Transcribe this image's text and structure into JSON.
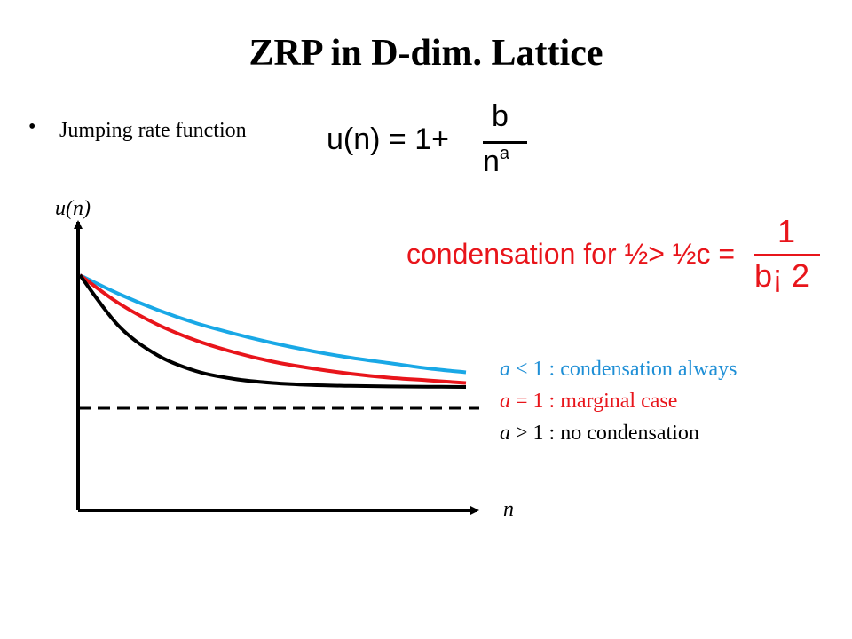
{
  "slide": {
    "title": "ZRP in D-dim. Lattice",
    "bullet": "Jumping rate function"
  },
  "formula": {
    "lhs": "u(n) = 1+",
    "numerator": "b",
    "denominator": "n",
    "exponent": "a"
  },
  "condition": {
    "text": "condensation for ½> ½c =",
    "numerator": "1",
    "denominator": "b¡ 2",
    "color": "#e8151b"
  },
  "legend": [
    {
      "var": "a",
      "text": " < 1 : condensation always",
      "color": "#1f8fd6"
    },
    {
      "var": "a",
      "text": " = 1 : marginal case",
      "color": "#e8151b"
    },
    {
      "var": "a",
      "text": " > 1 : no condensation",
      "color": "#000000"
    }
  ],
  "chart_data": {
    "type": "line",
    "title": "",
    "xlabel": "n",
    "ylabel": "u(n)",
    "grid": false,
    "series": [
      {
        "color": "#19a8e6",
        "x": [
          0,
          1,
          2,
          3,
          4,
          5,
          6,
          7,
          8,
          9,
          10
        ],
        "y": [
          1.0,
          0.86,
          0.74,
          0.64,
          0.56,
          0.49,
          0.43,
          0.38,
          0.34,
          0.3,
          0.27
        ]
      },
      {
        "color": "#e8151b",
        "x": [
          0,
          1,
          2,
          3,
          4,
          5,
          6,
          7,
          8,
          9,
          10
        ],
        "y": [
          1.0,
          0.79,
          0.63,
          0.51,
          0.42,
          0.35,
          0.3,
          0.26,
          0.23,
          0.21,
          0.19
        ]
      },
      {
        "color": "#000000",
        "x": [
          0,
          1,
          2,
          3,
          4,
          5,
          6,
          7,
          8,
          9,
          10
        ],
        "y": [
          1.0,
          0.62,
          0.4,
          0.28,
          0.22,
          0.19,
          0.175,
          0.168,
          0.164,
          0.162,
          0.16
        ]
      }
    ],
    "asymptote": {
      "y": 0.0,
      "style": "dashed",
      "color": "#000000"
    }
  }
}
